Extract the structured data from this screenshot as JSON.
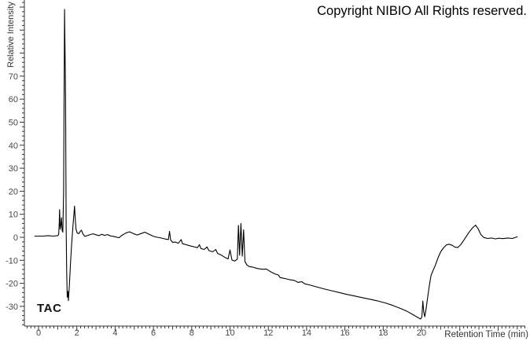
{
  "header": {
    "copyright": "Copyright NIBIO All Rights reserved."
  },
  "sample_label": "TAC",
  "colors": {
    "background": "#ffffff",
    "trace": "#000000",
    "axis": "#333333",
    "tick_label": "#474747",
    "axis_title": "#333333",
    "copyright_text": "#000000",
    "sample_label_text": "#111111"
  },
  "chart_data": {
    "type": "line",
    "title": "",
    "xlabel": "Retention Time (min)",
    "ylabel": "Relative Intensity",
    "legend": "none",
    "grid": false,
    "xlim": [
      -0.74,
      25.42
    ],
    "ylim": [
      -38.57,
      103.07
    ],
    "x_ticks": [
      0,
      2,
      4,
      6,
      8,
      10,
      12,
      14,
      16,
      18,
      20
    ],
    "y_ticks": [
      70,
      60,
      50,
      40,
      30,
      20,
      10,
      0,
      -10,
      -20,
      -30
    ],
    "x_minor_step": 0.2,
    "x_minor_range": [
      -0.6,
      25.3
    ],
    "y_minor_step": 2,
    "y_minor_range": [
      -38,
      102
    ],
    "series": [
      {
        "name": "TAC",
        "points": [
          [
            -0.2,
            0.5
          ],
          [
            0.2,
            0.5
          ],
          [
            0.5,
            0.7
          ],
          [
            0.75,
            0.5
          ],
          [
            1.0,
            0.7
          ],
          [
            1.05,
            1.2
          ],
          [
            1.08,
            6
          ],
          [
            1.1,
            12
          ],
          [
            1.13,
            3.5
          ],
          [
            1.16,
            5
          ],
          [
            1.2,
            8.5
          ],
          [
            1.23,
            3
          ],
          [
            1.27,
            2.2
          ],
          [
            1.31,
            20
          ],
          [
            1.36,
            99
          ],
          [
            1.41,
            60
          ],
          [
            1.44,
            5
          ],
          [
            1.47,
            -15
          ],
          [
            1.5,
            -26
          ],
          [
            1.53,
            -23.5
          ],
          [
            1.56,
            -27.5
          ],
          [
            1.61,
            -21
          ],
          [
            1.67,
            -11
          ],
          [
            1.73,
            -3
          ],
          [
            1.8,
            5
          ],
          [
            1.85,
            10.5
          ],
          [
            1.88,
            13.5
          ],
          [
            1.92,
            7.5
          ],
          [
            1.96,
            3.5
          ],
          [
            2.02,
            1.8
          ],
          [
            2.1,
            1.6
          ],
          [
            2.18,
            2.6
          ],
          [
            2.24,
            3.1
          ],
          [
            2.32,
            1.4
          ],
          [
            2.42,
            0.4
          ],
          [
            2.55,
            0.7
          ],
          [
            2.7,
            1.2
          ],
          [
            2.85,
            1.5
          ],
          [
            3.0,
            1.1
          ],
          [
            3.15,
            0.7
          ],
          [
            3.3,
            1.3
          ],
          [
            3.45,
            0.8
          ],
          [
            3.6,
            1.2
          ],
          [
            3.75,
            0.6
          ],
          [
            3.9,
            0.4
          ],
          [
            4.05,
            0.1
          ],
          [
            4.2,
            -0.2
          ],
          [
            4.35,
            0.8
          ],
          [
            4.55,
            1.8
          ],
          [
            4.75,
            2.4
          ],
          [
            4.95,
            1.6
          ],
          [
            5.15,
            1.0
          ],
          [
            5.35,
            1.6
          ],
          [
            5.55,
            2.2
          ],
          [
            5.75,
            1.4
          ],
          [
            5.9,
            0.8
          ],
          [
            6.05,
            0.3
          ],
          [
            6.2,
            0.0
          ],
          [
            6.35,
            -0.2
          ],
          [
            6.5,
            -0.5
          ],
          [
            6.65,
            -0.8
          ],
          [
            6.78,
            -1.0
          ],
          [
            6.84,
            2.6
          ],
          [
            6.9,
            -1.2
          ],
          [
            7.0,
            -2.2
          ],
          [
            7.15,
            -2.1
          ],
          [
            7.3,
            -2.6
          ],
          [
            7.45,
            -1.0
          ],
          [
            7.52,
            -2.8
          ],
          [
            7.7,
            -3.2
          ],
          [
            7.9,
            -3.7
          ],
          [
            8.1,
            -4.1
          ],
          [
            8.3,
            -4.5
          ],
          [
            8.4,
            -3.2
          ],
          [
            8.48,
            -4.9
          ],
          [
            8.65,
            -5.3
          ],
          [
            8.8,
            -4.2
          ],
          [
            8.9,
            -5.8
          ],
          [
            9.1,
            -6.3
          ],
          [
            9.25,
            -5.3
          ],
          [
            9.35,
            -7.0
          ],
          [
            9.55,
            -7.8
          ],
          [
            9.75,
            -8.8
          ],
          [
            9.9,
            -9.4
          ],
          [
            10.0,
            -5.5
          ],
          [
            10.1,
            -9.9
          ],
          [
            10.25,
            -10.3
          ],
          [
            10.38,
            -9.5
          ],
          [
            10.44,
            5.2
          ],
          [
            10.5,
            -7.8
          ],
          [
            10.57,
            6.0
          ],
          [
            10.64,
            -8.2
          ],
          [
            10.71,
            3.2
          ],
          [
            10.78,
            -10.5
          ],
          [
            10.88,
            -12.0
          ],
          [
            11.0,
            -12.7
          ],
          [
            11.2,
            -13.0
          ],
          [
            11.45,
            -13.6
          ],
          [
            11.7,
            -13.9
          ],
          [
            11.9,
            -13.8
          ],
          [
            12.1,
            -14.9
          ],
          [
            12.35,
            -15.9
          ],
          [
            12.52,
            -16.4
          ],
          [
            12.62,
            -17.5
          ],
          [
            12.85,
            -17.9
          ],
          [
            13.1,
            -18.4
          ],
          [
            13.35,
            -18.7
          ],
          [
            13.55,
            -19.6
          ],
          [
            13.75,
            -19.3
          ],
          [
            13.9,
            -20.2
          ],
          [
            14.15,
            -20.7
          ],
          [
            14.5,
            -21.5
          ],
          [
            14.9,
            -22.4
          ],
          [
            15.3,
            -23.2
          ],
          [
            15.7,
            -24.0
          ],
          [
            16.1,
            -24.8
          ],
          [
            16.5,
            -25.5
          ],
          [
            16.9,
            -26.2
          ],
          [
            17.3,
            -26.9
          ],
          [
            17.7,
            -27.6
          ],
          [
            18.1,
            -28.5
          ],
          [
            18.5,
            -29.6
          ],
          [
            18.9,
            -30.9
          ],
          [
            19.25,
            -32.2
          ],
          [
            19.55,
            -33.6
          ],
          [
            19.8,
            -34.8
          ],
          [
            19.95,
            -35.5
          ],
          [
            20.02,
            -34.6
          ],
          [
            20.07,
            -27.7
          ],
          [
            20.12,
            -32.5
          ],
          [
            20.17,
            -34.5
          ],
          [
            20.25,
            -30.5
          ],
          [
            20.33,
            -25.5
          ],
          [
            20.42,
            -20.5
          ],
          [
            20.5,
            -16.5
          ],
          [
            20.6,
            -14.5
          ],
          [
            20.72,
            -12.2
          ],
          [
            20.85,
            -9.2
          ],
          [
            21.0,
            -6.3
          ],
          [
            21.15,
            -4.6
          ],
          [
            21.3,
            -3.3
          ],
          [
            21.45,
            -3.0
          ],
          [
            21.6,
            -3.5
          ],
          [
            21.75,
            -4.3
          ],
          [
            21.9,
            -4.4
          ],
          [
            22.05,
            -3.2
          ],
          [
            22.25,
            -0.8
          ],
          [
            22.45,
            1.8
          ],
          [
            22.65,
            4.0
          ],
          [
            22.82,
            5.3
          ],
          [
            22.95,
            3.8
          ],
          [
            23.1,
            1.2
          ],
          [
            23.25,
            -0.1
          ],
          [
            23.45,
            -0.5
          ],
          [
            23.65,
            -0.3
          ],
          [
            23.85,
            -0.7
          ],
          [
            24.05,
            -0.4
          ],
          [
            24.25,
            -0.6
          ],
          [
            24.5,
            -0.3
          ],
          [
            24.75,
            -0.5
          ],
          [
            25.0,
            0.2
          ]
        ]
      }
    ]
  }
}
